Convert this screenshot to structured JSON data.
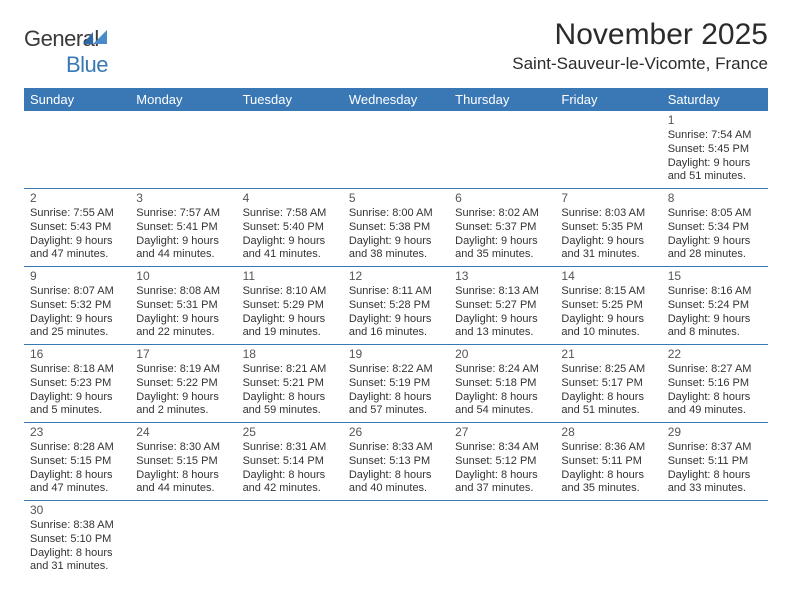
{
  "logo": {
    "text_a": "General",
    "text_b": "Blue",
    "mark_color": "#2f6aa8"
  },
  "title": "November 2025",
  "subtitle": "Saint-Sauveur-le-Vicomte, France",
  "colors": {
    "header_bg": "#3a78b5",
    "divider": "#3a78b5",
    "text": "#333333"
  },
  "weekdays": [
    "Sunday",
    "Monday",
    "Tuesday",
    "Wednesday",
    "Thursday",
    "Friday",
    "Saturday"
  ],
  "weeks": [
    [
      null,
      null,
      null,
      null,
      null,
      null,
      {
        "n": "1",
        "sunrise": "Sunrise: 7:54 AM",
        "sunset": "Sunset: 5:45 PM",
        "day1": "Daylight: 9 hours",
        "day2": "and 51 minutes."
      }
    ],
    [
      {
        "n": "2",
        "sunrise": "Sunrise: 7:55 AM",
        "sunset": "Sunset: 5:43 PM",
        "day1": "Daylight: 9 hours",
        "day2": "and 47 minutes."
      },
      {
        "n": "3",
        "sunrise": "Sunrise: 7:57 AM",
        "sunset": "Sunset: 5:41 PM",
        "day1": "Daylight: 9 hours",
        "day2": "and 44 minutes."
      },
      {
        "n": "4",
        "sunrise": "Sunrise: 7:58 AM",
        "sunset": "Sunset: 5:40 PM",
        "day1": "Daylight: 9 hours",
        "day2": "and 41 minutes."
      },
      {
        "n": "5",
        "sunrise": "Sunrise: 8:00 AM",
        "sunset": "Sunset: 5:38 PM",
        "day1": "Daylight: 9 hours",
        "day2": "and 38 minutes."
      },
      {
        "n": "6",
        "sunrise": "Sunrise: 8:02 AM",
        "sunset": "Sunset: 5:37 PM",
        "day1": "Daylight: 9 hours",
        "day2": "and 35 minutes."
      },
      {
        "n": "7",
        "sunrise": "Sunrise: 8:03 AM",
        "sunset": "Sunset: 5:35 PM",
        "day1": "Daylight: 9 hours",
        "day2": "and 31 minutes."
      },
      {
        "n": "8",
        "sunrise": "Sunrise: 8:05 AM",
        "sunset": "Sunset: 5:34 PM",
        "day1": "Daylight: 9 hours",
        "day2": "and 28 minutes."
      }
    ],
    [
      {
        "n": "9",
        "sunrise": "Sunrise: 8:07 AM",
        "sunset": "Sunset: 5:32 PM",
        "day1": "Daylight: 9 hours",
        "day2": "and 25 minutes."
      },
      {
        "n": "10",
        "sunrise": "Sunrise: 8:08 AM",
        "sunset": "Sunset: 5:31 PM",
        "day1": "Daylight: 9 hours",
        "day2": "and 22 minutes."
      },
      {
        "n": "11",
        "sunrise": "Sunrise: 8:10 AM",
        "sunset": "Sunset: 5:29 PM",
        "day1": "Daylight: 9 hours",
        "day2": "and 19 minutes."
      },
      {
        "n": "12",
        "sunrise": "Sunrise: 8:11 AM",
        "sunset": "Sunset: 5:28 PM",
        "day1": "Daylight: 9 hours",
        "day2": "and 16 minutes."
      },
      {
        "n": "13",
        "sunrise": "Sunrise: 8:13 AM",
        "sunset": "Sunset: 5:27 PM",
        "day1": "Daylight: 9 hours",
        "day2": "and 13 minutes."
      },
      {
        "n": "14",
        "sunrise": "Sunrise: 8:15 AM",
        "sunset": "Sunset: 5:25 PM",
        "day1": "Daylight: 9 hours",
        "day2": "and 10 minutes."
      },
      {
        "n": "15",
        "sunrise": "Sunrise: 8:16 AM",
        "sunset": "Sunset: 5:24 PM",
        "day1": "Daylight: 9 hours",
        "day2": "and 8 minutes."
      }
    ],
    [
      {
        "n": "16",
        "sunrise": "Sunrise: 8:18 AM",
        "sunset": "Sunset: 5:23 PM",
        "day1": "Daylight: 9 hours",
        "day2": "and 5 minutes."
      },
      {
        "n": "17",
        "sunrise": "Sunrise: 8:19 AM",
        "sunset": "Sunset: 5:22 PM",
        "day1": "Daylight: 9 hours",
        "day2": "and 2 minutes."
      },
      {
        "n": "18",
        "sunrise": "Sunrise: 8:21 AM",
        "sunset": "Sunset: 5:21 PM",
        "day1": "Daylight: 8 hours",
        "day2": "and 59 minutes."
      },
      {
        "n": "19",
        "sunrise": "Sunrise: 8:22 AM",
        "sunset": "Sunset: 5:19 PM",
        "day1": "Daylight: 8 hours",
        "day2": "and 57 minutes."
      },
      {
        "n": "20",
        "sunrise": "Sunrise: 8:24 AM",
        "sunset": "Sunset: 5:18 PM",
        "day1": "Daylight: 8 hours",
        "day2": "and 54 minutes."
      },
      {
        "n": "21",
        "sunrise": "Sunrise: 8:25 AM",
        "sunset": "Sunset: 5:17 PM",
        "day1": "Daylight: 8 hours",
        "day2": "and 51 minutes."
      },
      {
        "n": "22",
        "sunrise": "Sunrise: 8:27 AM",
        "sunset": "Sunset: 5:16 PM",
        "day1": "Daylight: 8 hours",
        "day2": "and 49 minutes."
      }
    ],
    [
      {
        "n": "23",
        "sunrise": "Sunrise: 8:28 AM",
        "sunset": "Sunset: 5:15 PM",
        "day1": "Daylight: 8 hours",
        "day2": "and 47 minutes."
      },
      {
        "n": "24",
        "sunrise": "Sunrise: 8:30 AM",
        "sunset": "Sunset: 5:15 PM",
        "day1": "Daylight: 8 hours",
        "day2": "and 44 minutes."
      },
      {
        "n": "25",
        "sunrise": "Sunrise: 8:31 AM",
        "sunset": "Sunset: 5:14 PM",
        "day1": "Daylight: 8 hours",
        "day2": "and 42 minutes."
      },
      {
        "n": "26",
        "sunrise": "Sunrise: 8:33 AM",
        "sunset": "Sunset: 5:13 PM",
        "day1": "Daylight: 8 hours",
        "day2": "and 40 minutes."
      },
      {
        "n": "27",
        "sunrise": "Sunrise: 8:34 AM",
        "sunset": "Sunset: 5:12 PM",
        "day1": "Daylight: 8 hours",
        "day2": "and 37 minutes."
      },
      {
        "n": "28",
        "sunrise": "Sunrise: 8:36 AM",
        "sunset": "Sunset: 5:11 PM",
        "day1": "Daylight: 8 hours",
        "day2": "and 35 minutes."
      },
      {
        "n": "29",
        "sunrise": "Sunrise: 8:37 AM",
        "sunset": "Sunset: 5:11 PM",
        "day1": "Daylight: 8 hours",
        "day2": "and 33 minutes."
      }
    ],
    [
      {
        "n": "30",
        "sunrise": "Sunrise: 8:38 AM",
        "sunset": "Sunset: 5:10 PM",
        "day1": "Daylight: 8 hours",
        "day2": "and 31 minutes."
      },
      null,
      null,
      null,
      null,
      null,
      null
    ]
  ]
}
